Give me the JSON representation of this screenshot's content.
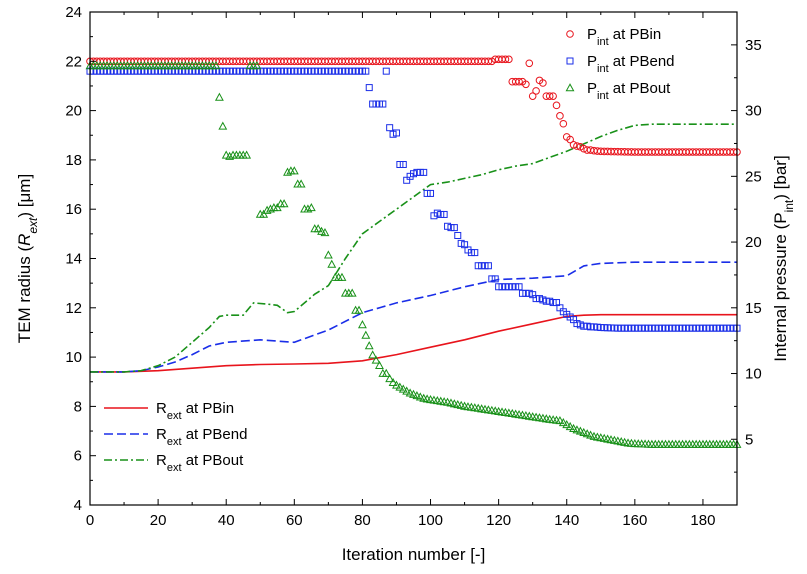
{
  "chart_data": {
    "type": "line",
    "title": "",
    "xlabel": "Iteration number [-]",
    "ylabel_left": [
      "TEM radius (",
      "R",
      "ext",
      ") [μm]"
    ],
    "ylabel_right": [
      "Internal pressure (P",
      "int",
      ") [bar]"
    ],
    "xlim": [
      0,
      190
    ],
    "ylim_left": [
      4,
      24
    ],
    "ylim_right": [
      0,
      37.5
    ],
    "xticks": [
      "0",
      "20",
      "40",
      "60",
      "80",
      "100",
      "120",
      "140",
      "160",
      "180"
    ],
    "yticks_left": [
      "4",
      "6",
      "8",
      "10",
      "12",
      "14",
      "16",
      "18",
      "20",
      "22",
      "24"
    ],
    "yticks_right": [
      "5",
      "10",
      "15",
      "20",
      "25",
      "30",
      "35"
    ],
    "grid": false,
    "legend_line_series": {
      "placement": "bottom-left",
      "entries": [
        {
          "main": "R",
          "sub": "ext",
          "rest": " at PBin"
        },
        {
          "main": "R",
          "sub": "ext",
          "rest": " at PBend"
        },
        {
          "main": "R",
          "sub": "ext",
          "rest": " at PBout"
        }
      ]
    },
    "legend_marker_series": {
      "placement": "top-right",
      "entries": [
        {
          "main": "P",
          "sub": "int",
          "rest": " at PBin"
        },
        {
          "main": "P",
          "sub": "int",
          "rest": " at PBend"
        },
        {
          "main": "P",
          "sub": "int",
          "rest": " at PBout"
        }
      ]
    },
    "line_series": [
      {
        "name": "Rext at PBin",
        "axis": "left",
        "color": "#e8141c",
        "dash": "solid",
        "x": [
          0,
          10,
          20,
          30,
          40,
          50,
          60,
          70,
          80,
          90,
          100,
          110,
          120,
          130,
          140,
          145,
          150,
          160,
          170,
          180,
          190
        ],
        "y": [
          9.4,
          9.4,
          9.45,
          9.55,
          9.65,
          9.7,
          9.72,
          9.75,
          9.85,
          10.1,
          10.4,
          10.7,
          11.05,
          11.35,
          11.65,
          11.7,
          11.72,
          11.72,
          11.72,
          11.72,
          11.72
        ]
      },
      {
        "name": "Rext at PBend",
        "axis": "left",
        "color": "#1a2ee8",
        "dash": "dashed",
        "x": [
          0,
          10,
          15,
          20,
          25,
          30,
          35,
          40,
          50,
          55,
          60,
          70,
          80,
          90,
          100,
          110,
          120,
          130,
          140,
          145,
          150,
          160,
          170,
          180,
          190
        ],
        "y": [
          9.4,
          9.4,
          9.45,
          9.6,
          9.8,
          10.1,
          10.45,
          10.6,
          10.7,
          10.65,
          10.6,
          11.1,
          11.8,
          12.2,
          12.5,
          12.85,
          13.15,
          13.2,
          13.3,
          13.7,
          13.8,
          13.85,
          13.85,
          13.85,
          13.85
        ]
      },
      {
        "name": "Rext at PBout",
        "axis": "left",
        "color": "#199119",
        "dash": "dashdot",
        "x": [
          0,
          10,
          15,
          20,
          25,
          30,
          35,
          38,
          40,
          45,
          48,
          52,
          55,
          58,
          60,
          63,
          66,
          70,
          75,
          80,
          85,
          90,
          95,
          100,
          105,
          110,
          115,
          120,
          125,
          130,
          135,
          140,
          145,
          150,
          155,
          160,
          165,
          170,
          180,
          190
        ],
        "y": [
          9.4,
          9.4,
          9.45,
          9.65,
          10.0,
          10.6,
          11.2,
          11.65,
          11.7,
          11.7,
          12.2,
          12.15,
          12.1,
          11.8,
          11.85,
          12.2,
          12.55,
          12.9,
          14.0,
          15.0,
          15.5,
          16.0,
          16.5,
          17.0,
          17.1,
          17.25,
          17.4,
          17.6,
          17.75,
          17.85,
          18.1,
          18.35,
          18.65,
          18.95,
          19.2,
          19.4,
          19.45,
          19.45,
          19.45,
          19.45
        ]
      }
    ],
    "marker_series": [
      {
        "name": "Pint at PBin",
        "axis": "right",
        "color": "#e8141c",
        "marker": "circle",
        "x": [
          0,
          20,
          40,
          60,
          80,
          100,
          118,
          119,
          120,
          121,
          122,
          123,
          124,
          125,
          126,
          127,
          128,
          129,
          130,
          131,
          132,
          133,
          134,
          135,
          136,
          137,
          138,
          139,
          140,
          141,
          142,
          143,
          144,
          145,
          146,
          147,
          148,
          150,
          160,
          170,
          180,
          190
        ],
        "y": [
          33.75,
          33.75,
          33.75,
          33.75,
          33.75,
          33.75,
          33.75,
          33.9,
          33.9,
          33.9,
          33.9,
          33.9,
          32.2,
          32.2,
          32.2,
          32.2,
          32.0,
          33.6,
          31.1,
          31.5,
          32.3,
          32.1,
          31.1,
          31.1,
          31.1,
          30.4,
          29.6,
          29.0,
          28.0,
          27.8,
          27.4,
          27.3,
          27.25,
          27.1,
          27.0,
          27.0,
          26.95,
          26.9,
          26.85,
          26.85,
          26.85,
          26.85
        ]
      },
      {
        "name": "Pint at PBend",
        "axis": "right",
        "color": "#1a2ee8",
        "marker": "square",
        "x": [
          0,
          20,
          40,
          60,
          80,
          81,
          83,
          84,
          85,
          86,
          87,
          88,
          89,
          90,
          91,
          92,
          93,
          94,
          95,
          96,
          97,
          98,
          99,
          100,
          101,
          102,
          103,
          104,
          105,
          106,
          107,
          108,
          109,
          110,
          111,
          112,
          113,
          114,
          115,
          116,
          117,
          118,
          119,
          120,
          121,
          122,
          123,
          124,
          125,
          126,
          127,
          128,
          129,
          130,
          131,
          132,
          133,
          134,
          135,
          136,
          137,
          138,
          139,
          140,
          141,
          142,
          143,
          144,
          145,
          146,
          147,
          148,
          150,
          155,
          160,
          170,
          180,
          190
        ],
        "y": [
          33.0,
          33.0,
          33.0,
          33.0,
          33.0,
          33.0,
          30.5,
          30.5,
          30.5,
          30.5,
          33.0,
          28.7,
          28.2,
          28.3,
          25.9,
          25.9,
          24.7,
          25.0,
          25.2,
          25.3,
          25.3,
          25.3,
          23.7,
          23.7,
          22.0,
          22.2,
          22.1,
          22.1,
          21.2,
          21.1,
          21.1,
          20.5,
          19.9,
          19.8,
          19.4,
          19.2,
          19.2,
          18.2,
          18.2,
          18.2,
          18.2,
          17.2,
          17.2,
          16.6,
          16.6,
          16.6,
          16.6,
          16.6,
          16.6,
          16.6,
          16.1,
          16.1,
          16.1,
          16.0,
          15.7,
          15.7,
          15.6,
          15.5,
          15.5,
          15.4,
          15.4,
          15.0,
          14.7,
          14.5,
          14.3,
          14.1,
          13.8,
          13.7,
          13.6,
          13.6,
          13.55,
          13.55,
          13.5,
          13.45,
          13.45,
          13.45,
          13.45,
          13.45
        ]
      },
      {
        "name": "Pint at PBout",
        "axis": "right",
        "color": "#199119",
        "marker": "triangle",
        "x": [
          0,
          5,
          10,
          15,
          20,
          25,
          30,
          35,
          37,
          38,
          40,
          41,
          42,
          43,
          44,
          45,
          46,
          47,
          48,
          49,
          50,
          51,
          52,
          53,
          54,
          55,
          56,
          57,
          58,
          59,
          60,
          61,
          62,
          63,
          64,
          65,
          66,
          67,
          68,
          69,
          70,
          71,
          72,
          73,
          74,
          75,
          76,
          77,
          78,
          79,
          80,
          81,
          82,
          83,
          84,
          85,
          86,
          87,
          88,
          89,
          90,
          92,
          94,
          96,
          98,
          100,
          105,
          110,
          115,
          120,
          125,
          130,
          135,
          138,
          140,
          142,
          144,
          146,
          148,
          150,
          152,
          154,
          156,
          158,
          160,
          165,
          170,
          180,
          190
        ],
        "y": [
          33.4,
          33.4,
          33.4,
          33.4,
          33.4,
          33.4,
          33.4,
          33.4,
          33.4,
          31.0,
          26.6,
          26.5,
          26.6,
          26.6,
          26.6,
          26.6,
          26.6,
          33.4,
          33.4,
          33.4,
          22.1,
          22.1,
          22.4,
          22.5,
          22.6,
          22.6,
          22.9,
          22.9,
          25.3,
          25.4,
          25.4,
          24.4,
          24.4,
          22.5,
          22.5,
          22.6,
          21.0,
          21.0,
          20.8,
          20.7,
          19.0,
          18.3,
          17.3,
          17.3,
          17.3,
          16.1,
          16.1,
          16.1,
          14.8,
          14.8,
          13.7,
          12.9,
          12.1,
          11.4,
          11.0,
          10.6,
          10.0,
          10.0,
          9.6,
          9.3,
          9.1,
          8.8,
          8.5,
          8.3,
          8.1,
          8.0,
          7.8,
          7.5,
          7.3,
          7.1,
          6.9,
          6.7,
          6.5,
          6.4,
          6.1,
          5.8,
          5.6,
          5.4,
          5.2,
          5.1,
          5.0,
          4.9,
          4.8,
          4.7,
          4.65,
          4.6,
          4.6,
          4.6,
          4.6
        ]
      }
    ]
  }
}
